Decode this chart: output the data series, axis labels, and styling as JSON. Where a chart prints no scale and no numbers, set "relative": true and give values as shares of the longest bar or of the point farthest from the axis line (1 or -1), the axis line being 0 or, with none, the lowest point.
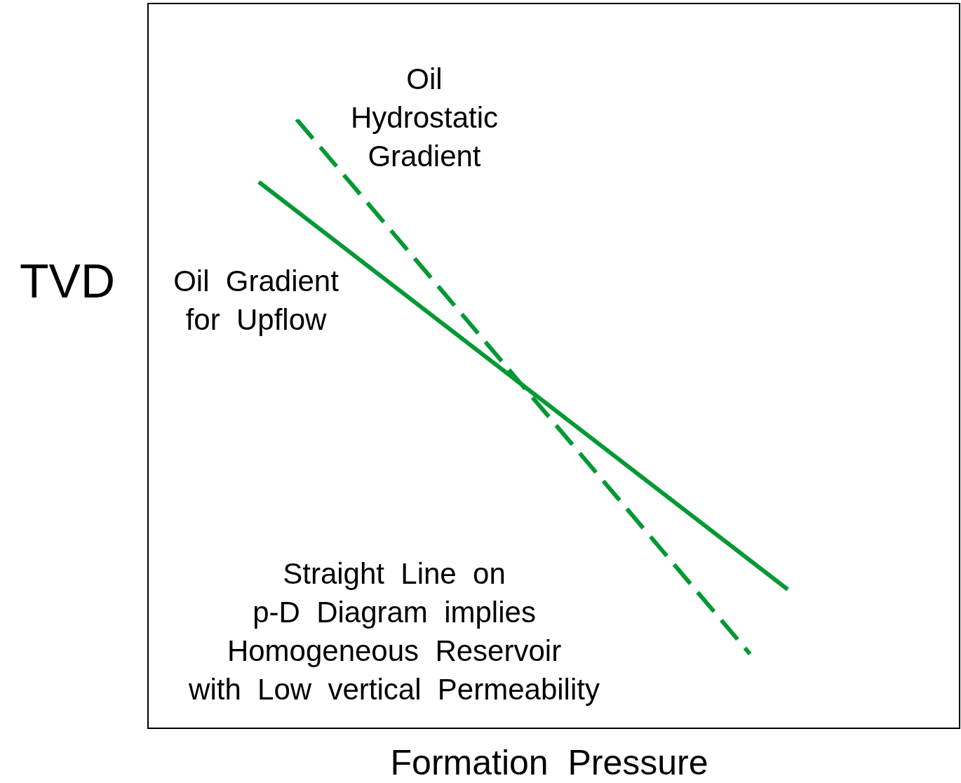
{
  "chart_data": {
    "type": "line",
    "relative": true,
    "xlabel": "Formation Pressure",
    "ylabel": "TVD",
    "legend": false,
    "marker": "none",
    "categories": [
      null,
      null,
      null,
      null,
      null,
      null,
      null,
      null,
      null,
      null,
      null,
      null,
      null,
      null,
      null
    ],
    "series": [
      {
        "name": "Oil\nHydrostatic\nGradient",
        "color": "#009933",
        "line_style": "dashed",
        "values": [
          null,
          1,
          null,
          null,
          null,
          null,
          null,
          null,
          null,
          null,
          null,
          null,
          null,
          0.122,
          null
        ]
      },
      {
        "name": "Oil Gradient\nfor Upflow",
        "color": "#009933",
        "line_style": "solid",
        "values": [
          0.897,
          null,
          null,
          null,
          null,
          null,
          null,
          null,
          null,
          null,
          null,
          null,
          null,
          null,
          0.228
        ]
      }
    ],
    "annotations": [
      "Straight Line on\np-D Diagram implies\nHomogeneous Reservoir\nwith Low vertical Permeability"
    ]
  }
}
